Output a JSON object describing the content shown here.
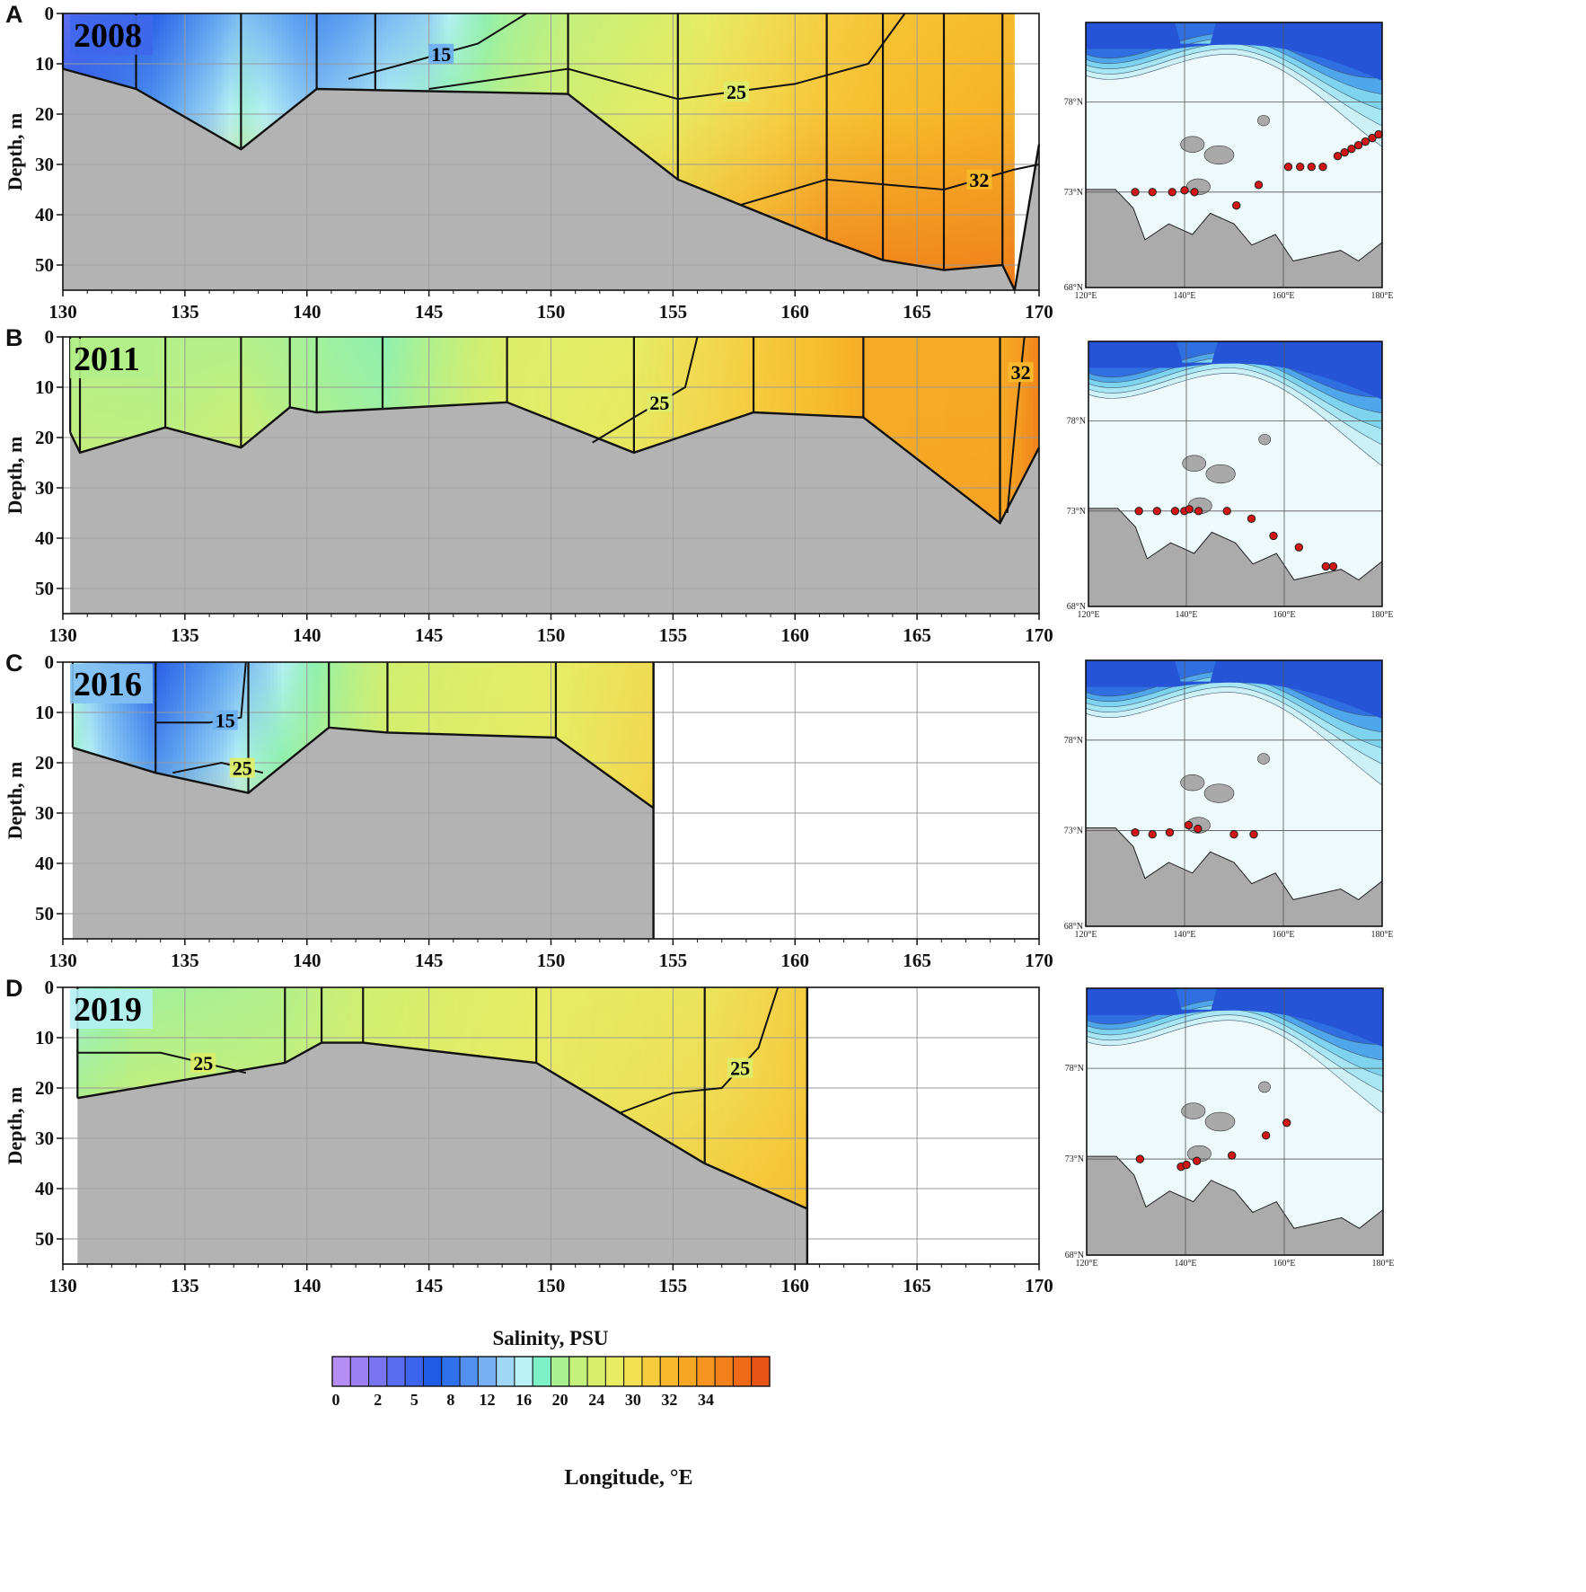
{
  "chart_data": {
    "type": "heatmap",
    "xlabel": "Longitude, °E",
    "ylabel": "Depth, m",
    "xlim": [
      130,
      170
    ],
    "ylim": [
      0,
      55
    ],
    "x_ticks": [
      130,
      135,
      140,
      145,
      150,
      155,
      160,
      165,
      170
    ],
    "y_ticks": [
      0,
      10,
      20,
      30,
      40,
      50
    ],
    "colorbar": {
      "title": "Salinity, PSU",
      "ticks": [
        "0",
        "2",
        "5",
        "8",
        "12",
        "16",
        "20",
        "24",
        "30",
        "32",
        "34"
      ],
      "colors": [
        "#b68cf5",
        "#9a80f2",
        "#7a74f0",
        "#5a6cef",
        "#3d64ec",
        "#1e5ce6",
        "#2f70ec",
        "#5290f0",
        "#76b0f3",
        "#9ed6f4",
        "#b8f2f5",
        "#7ef0c8",
        "#a8f090",
        "#c4f07c",
        "#d8ee6c",
        "#e8ec62",
        "#f2e050",
        "#f6cc3c",
        "#f7b82c",
        "#f6a624",
        "#f5941e",
        "#f2801a",
        "#ee6a18",
        "#e85416"
      ]
    },
    "panels": [
      {
        "label": "A",
        "year": "2008",
        "stations_lon": [
          130,
          133,
          137.3,
          140.4,
          142.8,
          150.7,
          155.2,
          161.3,
          163.6,
          166.1,
          168.5
        ],
        "bottom_depth": [
          [
            130,
            11
          ],
          [
            133,
            15
          ],
          [
            137.3,
            27
          ],
          [
            140.4,
            15
          ],
          [
            150.7,
            16
          ],
          [
            155.2,
            33
          ],
          [
            161.3,
            45
          ],
          [
            163.6,
            49
          ],
          [
            166.1,
            51
          ],
          [
            168.5,
            50
          ],
          [
            169,
            55
          ]
        ],
        "surface_salinity": [
          [
            130,
            4
          ],
          [
            133,
            7
          ],
          [
            137.3,
            14
          ],
          [
            140.4,
            11
          ],
          [
            145,
            15
          ],
          [
            148,
            19
          ],
          [
            150.7,
            21
          ],
          [
            155.2,
            23
          ],
          [
            160,
            27
          ],
          [
            163.6,
            29
          ],
          [
            168.5,
            30
          ],
          [
            170,
            30
          ]
        ],
        "bottom_salinity": [
          [
            130,
            22
          ],
          [
            133,
            24
          ],
          [
            137.3,
            28
          ],
          [
            140.4,
            26
          ],
          [
            150.7,
            26
          ],
          [
            155.2,
            30
          ],
          [
            161.3,
            33
          ],
          [
            166.1,
            33
          ],
          [
            168.5,
            33
          ],
          [
            170,
            34
          ]
        ],
        "contours": [
          {
            "label": "15",
            "points": [
              [
                141.7,
                13
              ],
              [
                144,
                10
              ],
              [
                147,
                6
              ],
              [
                149,
                0
              ]
            ]
          },
          {
            "label": "25",
            "points": [
              [
                145,
                15
              ],
              [
                150.7,
                11
              ],
              [
                155.2,
                17
              ],
              [
                160,
                14
              ],
              [
                163,
                10
              ],
              [
                164.5,
                0
              ]
            ]
          },
          {
            "label": "32",
            "points": [
              [
                157.8,
                38
              ],
              [
                161.3,
                33
              ],
              [
                166.1,
                35
              ],
              [
                169,
                31
              ],
              [
                170,
                30
              ]
            ]
          }
        ]
      },
      {
        "label": "B",
        "year": "2011",
        "stations_lon": [
          130.3,
          130.7,
          134.2,
          137.3,
          139.3,
          140.4,
          143.1,
          148.2,
          153.4,
          158.3,
          162.8,
          168.4
        ],
        "bottom_depth": [
          [
            130.3,
            19
          ],
          [
            130.7,
            23
          ],
          [
            134.2,
            18
          ],
          [
            137.3,
            22
          ],
          [
            139.3,
            14
          ],
          [
            140.4,
            15
          ],
          [
            148.2,
            13
          ],
          [
            153.4,
            23
          ],
          [
            158.3,
            15
          ],
          [
            162.8,
            16
          ],
          [
            168.4,
            37
          ],
          [
            170,
            22
          ]
        ],
        "surface_salinity": [
          [
            130.3,
            20
          ],
          [
            134.2,
            20
          ],
          [
            137.3,
            20
          ],
          [
            140.4,
            19
          ],
          [
            143.1,
            18
          ],
          [
            148.2,
            23
          ],
          [
            153.4,
            24
          ],
          [
            158.3,
            28
          ],
          [
            162.8,
            31
          ],
          [
            168.4,
            31
          ],
          [
            170,
            33
          ]
        ],
        "bottom_salinity": [
          [
            130.3,
            24
          ],
          [
            134.2,
            23
          ],
          [
            137.3,
            28
          ],
          [
            140.4,
            22
          ],
          [
            148.2,
            24
          ],
          [
            153.4,
            27
          ],
          [
            158.3,
            29
          ],
          [
            162.8,
            31
          ],
          [
            168.4,
            32
          ],
          [
            170,
            33
          ]
        ],
        "contours": [
          {
            "label": "25",
            "points": [
              [
                151.7,
                21
              ],
              [
                153.4,
                16
              ],
              [
                155.5,
                10
              ],
              [
                156,
                0
              ]
            ]
          },
          {
            "label": "32",
            "points": [
              [
                168.7,
                35
              ],
              [
                169.1,
                14
              ],
              [
                169.4,
                0
              ]
            ]
          }
        ]
      },
      {
        "label": "C",
        "year": "2016",
        "stations_lon": [
          130.4,
          133.8,
          137.6,
          140.9,
          143.3,
          150.2,
          154.2
        ],
        "bottom_depth": [
          [
            130.4,
            17
          ],
          [
            133.8,
            22
          ],
          [
            137.6,
            26
          ],
          [
            140.9,
            13
          ],
          [
            143.3,
            14
          ],
          [
            150.2,
            15
          ],
          [
            154.2,
            29
          ]
        ],
        "surface_salinity": [
          [
            130.4,
            16
          ],
          [
            133.8,
            8
          ],
          [
            137.6,
            14
          ],
          [
            140.9,
            19
          ],
          [
            143.3,
            22
          ],
          [
            150.2,
            24
          ],
          [
            154.2,
            26
          ]
        ],
        "bottom_salinity": [
          [
            130.4,
            22
          ],
          [
            133.8,
            23
          ],
          [
            137.6,
            28
          ],
          [
            140.9,
            24
          ],
          [
            150.2,
            25
          ],
          [
            154.2,
            29
          ]
        ],
        "contours": [
          {
            "label": "15",
            "points": [
              [
                133.8,
                12
              ],
              [
                136,
                12
              ],
              [
                137.3,
                11
              ],
              [
                137.5,
                0
              ]
            ]
          },
          {
            "label": "25",
            "points": [
              [
                134.5,
                22
              ],
              [
                136.5,
                20
              ],
              [
                138.2,
                22
              ]
            ]
          }
        ]
      },
      {
        "label": "D",
        "year": "2019",
        "stations_lon": [
          130.6,
          139.1,
          140.6,
          142.3,
          149.4,
          156.3,
          160.5
        ],
        "bottom_depth": [
          [
            130.6,
            22
          ],
          [
            139.1,
            15
          ],
          [
            140.6,
            11
          ],
          [
            142.3,
            11
          ],
          [
            149.4,
            15
          ],
          [
            156.3,
            35
          ],
          [
            160.5,
            44
          ]
        ],
        "surface_salinity": [
          [
            130.6,
            17
          ],
          [
            133,
            19
          ],
          [
            139.1,
            20
          ],
          [
            142.3,
            22
          ],
          [
            149.4,
            24
          ],
          [
            156.3,
            25
          ],
          [
            160.5,
            28
          ]
        ],
        "bottom_salinity": [
          [
            130.6,
            29
          ],
          [
            139.1,
            25
          ],
          [
            142.3,
            24
          ],
          [
            149.4,
            25
          ],
          [
            156.3,
            29
          ],
          [
            160.5,
            30
          ]
        ],
        "contours": [
          {
            "label": "25",
            "points": [
              [
                130.6,
                13
              ],
              [
                134,
                13
              ],
              [
                137.5,
                17
              ]
            ]
          },
          {
            "label": "25",
            "points": [
              [
                152.8,
                25
              ],
              [
                155,
                21
              ],
              [
                157,
                20
              ],
              [
                158.5,
                12
              ],
              [
                159.3,
                0
              ]
            ]
          }
        ]
      }
    ],
    "maps": {
      "lon_ticks": [
        "120°E",
        "140°E",
        "160°E",
        "180°E"
      ],
      "lat_ticks": [
        "78°N",
        "73°N",
        "68°N"
      ],
      "lon_range": [
        120,
        180
      ],
      "lat_range": [
        68,
        82
      ],
      "stations": [
        [
          [
            130,
            73
          ],
          [
            133.5,
            73
          ],
          [
            137.5,
            73
          ],
          [
            140,
            73.1
          ],
          [
            142,
            73
          ],
          [
            150.5,
            72.3
          ],
          [
            155,
            73.4
          ],
          [
            161,
            74.4
          ],
          [
            163.4,
            74.4
          ],
          [
            165.7,
            74.4
          ],
          [
            168,
            74.4
          ],
          [
            171,
            75
          ],
          [
            172.4,
            75.2
          ],
          [
            173.8,
            75.4
          ],
          [
            175.2,
            75.6
          ],
          [
            176.6,
            75.8
          ],
          [
            178,
            76
          ],
          [
            179.3,
            76.2
          ]
        ],
        [
          [
            130.3,
            73
          ],
          [
            134,
            73
          ],
          [
            137.7,
            73
          ],
          [
            139.6,
            73
          ],
          [
            140.6,
            73.1
          ],
          [
            142.5,
            73
          ],
          [
            148.3,
            73
          ],
          [
            153.3,
            72.6
          ],
          [
            157.8,
            71.7
          ],
          [
            163,
            71.1
          ],
          [
            168.5,
            70.1
          ],
          [
            170,
            70.1
          ]
        ],
        [
          [
            130,
            72.9
          ],
          [
            133.5,
            72.8
          ],
          [
            137,
            72.9
          ],
          [
            140.8,
            73.3
          ],
          [
            142.7,
            73.1
          ],
          [
            150,
            72.8
          ],
          [
            154,
            72.8
          ]
        ],
        [
          [
            130.8,
            73
          ],
          [
            139.1,
            72.6
          ],
          [
            140.2,
            72.7
          ],
          [
            142.3,
            72.9
          ],
          [
            149.4,
            73.2
          ],
          [
            156.3,
            74.3
          ],
          [
            160.5,
            75
          ]
        ]
      ]
    }
  }
}
